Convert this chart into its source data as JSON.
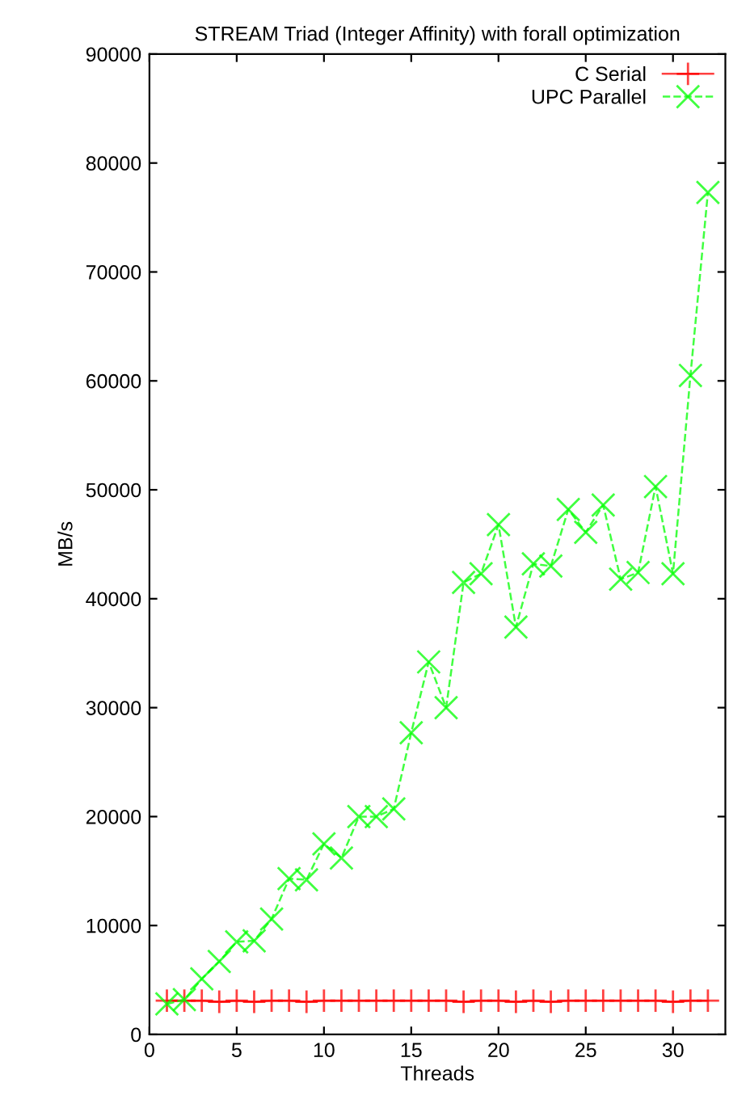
{
  "chart_data": {
    "type": "line",
    "title": "STREAM Triad (Integer Affinity) with forall optimization",
    "xlabel": "Threads",
    "ylabel": "MB/s",
    "x": [
      1,
      2,
      3,
      4,
      5,
      6,
      7,
      8,
      9,
      10,
      11,
      12,
      13,
      14,
      15,
      16,
      17,
      18,
      19,
      20,
      21,
      22,
      23,
      24,
      25,
      26,
      27,
      28,
      29,
      30,
      31,
      32
    ],
    "series": [
      {
        "name": "C Serial",
        "color": "#ff0000",
        "marker": "cross",
        "line_style": "solid",
        "values": [
          3100,
          3100,
          3100,
          3000,
          3100,
          3000,
          3100,
          3100,
          3000,
          3100,
          3100,
          3100,
          3100,
          3100,
          3100,
          3100,
          3100,
          3000,
          3100,
          3100,
          3000,
          3100,
          3000,
          3100,
          3100,
          3100,
          3100,
          3100,
          3100,
          3000,
          3100,
          3100
        ]
      },
      {
        "name": "UPC Parallel",
        "color": "#00ff00",
        "marker": "x",
        "line_style": "dashed",
        "values": [
          2800,
          3200,
          5100,
          6700,
          8500,
          8600,
          10600,
          14300,
          14200,
          17500,
          16200,
          20000,
          20000,
          20700,
          27700,
          34200,
          30000,
          41500,
          42300,
          46800,
          37400,
          43200,
          43000,
          48200,
          46100,
          48600,
          41800,
          42400,
          50300,
          42300,
          60500,
          77300
        ]
      }
    ],
    "xlim": [
      0,
      33
    ],
    "ylim": [
      0,
      90000
    ],
    "xticks": [
      0,
      5,
      10,
      15,
      20,
      25,
      30
    ],
    "yticks": [
      0,
      10000,
      20000,
      30000,
      40000,
      50000,
      60000,
      70000,
      80000,
      90000
    ],
    "grid": false,
    "legend": "top right"
  }
}
